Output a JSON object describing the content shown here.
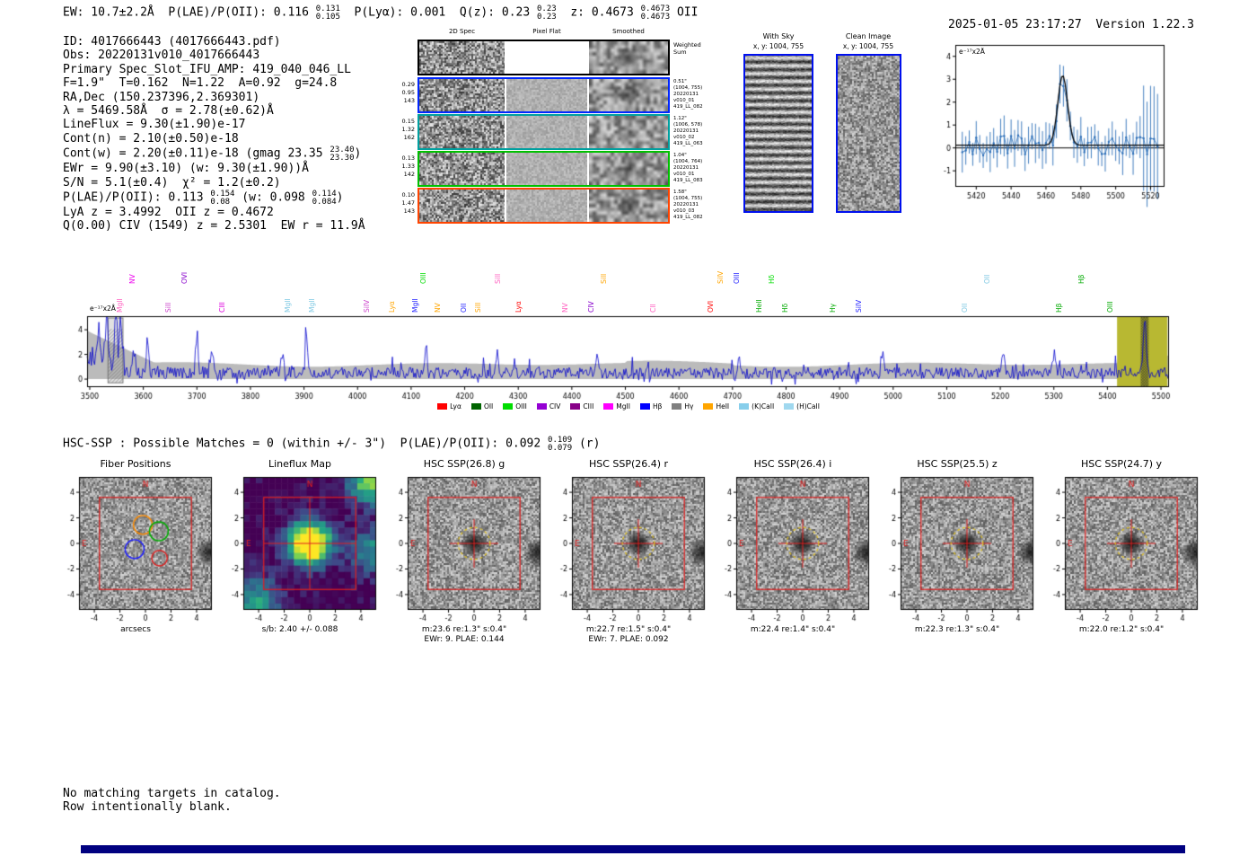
{
  "header": {
    "left_segments": [
      {
        "t": "EW: 10.7±2.2Å  P(LAE)/P(OII): 0.116 "
      },
      {
        "u": "0.131",
        "d": "0.105"
      },
      {
        "t": "  P(Lyα): 0.001  Q(z): 0.23 "
      },
      {
        "u": "0.23",
        "d": "0.23"
      },
      {
        "t": "  z: 0.4673 "
      },
      {
        "u": "0.4673",
        "d": "0.4673"
      },
      {
        "t": " OII"
      }
    ],
    "timestamp": "2025-01-05 23:17:27",
    "version": "Version 1.22.3"
  },
  "info_lines": [
    [
      {
        "t": "ID: 4017666443 (4017666443.pdf)"
      }
    ],
    [
      {
        "t": "Obs: 20220131v010_4017666443"
      }
    ],
    [
      {
        "t": "Primary Spec_Slot_IFU_AMP: 419_040_046_LL"
      }
    ],
    [
      {
        "t": "F=1.9\"  T=0.162  N=1.22  A=0.92  g=24.8"
      }
    ],
    [
      {
        "t": "RA,Dec (150.237396,2.369301)"
      }
    ],
    [
      {
        "t": "λ = 5469.58Å  σ = 2.78(±0.62)Å"
      }
    ],
    [
      {
        "t": "LineFlux = 9.30(±1.90)e-17"
      }
    ],
    [
      {
        "t": "Cont(n) = 2.10(±0.50)e-18"
      }
    ],
    [
      {
        "t": "Cont(w) = 2.20(±0.11)e-18 (gmag 23.35 "
      },
      {
        "u": "23.40",
        "d": "23.30"
      },
      {
        "t": ")"
      }
    ],
    [
      {
        "t": "EWr = 9.90(±3.10) (w: 9.30(±1.90))Å"
      }
    ],
    [
      {
        "t": "S/N = 5.1(±0.4)  χ² = 1.2(±0.2)"
      }
    ],
    [
      {
        "t": "P(LAE)/P(OII): 0.113 "
      },
      {
        "u": "0.154",
        "d": "0.08"
      },
      {
        "t": " (w: 0.098 "
      },
      {
        "u": "0.114",
        "d": "0.084"
      },
      {
        "t": ")"
      }
    ],
    [
      {
        "t": "LyA z = 3.4992  OII z = 0.4672"
      }
    ],
    [
      {
        "t": "Q(0.00) CIV (1549) z = 2.5301  EW r = 11.9Å"
      }
    ]
  ],
  "spec2d": {
    "col_headers": [
      "2D Spec",
      "Pixel Flat",
      "Smoothed"
    ],
    "weighted_sum_lines": [
      "Weighted",
      "Sum"
    ],
    "rows": [
      {
        "color": "#0026ff",
        "left": [
          "0.29",
          "0.95",
          "143"
        ],
        "right": [
          "0.51\"",
          "(1004, 755)",
          "20220131",
          "v010_01",
          "419_LL_082"
        ]
      },
      {
        "color": "#00a0a0",
        "left": [
          "0.15",
          "1.32",
          "162"
        ],
        "right": [
          "1.12\"",
          "(1006, 578)",
          "20220131",
          "v010_02",
          "419_LL_063"
        ]
      },
      {
        "color": "#00c000",
        "left": [
          "0.13",
          "1.33",
          "142"
        ],
        "right": [
          "1.04\"",
          "(1004, 764)",
          "20220131",
          "v010_01",
          "419_LL_083"
        ]
      },
      {
        "color": "#ff4400",
        "left": [
          "0.10",
          "1.47",
          "143"
        ],
        "right": [
          "1.58\"",
          "(1004, 755)",
          "20220131",
          "v010_03",
          "419_LL_082"
        ]
      }
    ]
  },
  "with_sky": {
    "title": "With Sky",
    "subtitle": "x, y: 1004, 755"
  },
  "clean_image": {
    "title": "Clean Image",
    "subtitle": "x, y: 1004, 755"
  },
  "chart_data": [
    {
      "type": "line",
      "name": "emission-line-fit-zoom",
      "ylabel": "e⁻¹⁷x2Å",
      "xlim": [
        5408,
        5528
      ],
      "ylim": [
        -1.7,
        4.5
      ],
      "xticks": [
        5420,
        5440,
        5460,
        5480,
        5500,
        5520
      ],
      "yticks": [
        -1,
        0,
        1,
        2,
        3,
        4
      ],
      "fit": {
        "center": 5469.58,
        "sigma": 2.78,
        "amplitude": 3.05,
        "baseline": 0.12
      },
      "noise_sigma": 0.45,
      "series": [
        {
          "name": "spectrum-data",
          "style": "errorbar",
          "color": "#2d6fb8"
        },
        {
          "name": "gaussian-fit",
          "style": "line",
          "color": "#000000"
        }
      ]
    },
    {
      "type": "line",
      "name": "full-spectrum",
      "ylabel": "e⁻¹⁷x2Å",
      "xlim": [
        3495,
        5515
      ],
      "ylim": [
        -0.65,
        5.1
      ],
      "xticks": [
        3500,
        3600,
        3700,
        3800,
        3900,
        4000,
        4100,
        4200,
        4300,
        4400,
        4500,
        4600,
        4700,
        4800,
        4900,
        5000,
        5100,
        5200,
        5300,
        5400,
        5500
      ],
      "yticks": [
        0,
        2,
        4
      ],
      "line_color": "#0000cc",
      "error_color": "#bbbbbb",
      "highlight_color": "#b8b832",
      "highlight_region": [
        5418,
        5512
      ],
      "hatch_region_left": [
        3534,
        3562
      ],
      "hatch_region_line": [
        5462,
        5477
      ],
      "emission_line": {
        "center": 5469.58,
        "sigma": 2.78,
        "amplitude": 4.55
      },
      "continuum_level": 0.5,
      "noise_sigma": 0.45
    }
  ],
  "emission_labels": [
    {
      "label": "MgII",
      "wl": 3548,
      "color": "#ff60c0",
      "tier": 0
    },
    {
      "label": "NV",
      "wl": 3572,
      "color": "#ee00ee",
      "tier": 1
    },
    {
      "label": "SiII",
      "wl": 3640,
      "color": "#cc44cc",
      "tier": 0
    },
    {
      "label": "OVI",
      "wl": 3670,
      "color": "#8800cc",
      "tier": 1
    },
    {
      "label": "CIII",
      "wl": 3739,
      "color": "#dd00dd",
      "tier": 0
    },
    {
      "label": "MgII",
      "wl": 3862,
      "color": "#7ec8e3",
      "tier": 0
    },
    {
      "label": "MgII",
      "wl": 3908,
      "color": "#7ec8e3",
      "tier": 0
    },
    {
      "label": "SiIV",
      "wl": 4010,
      "color": "#cc44cc",
      "tier": 0
    },
    {
      "label": "Lyα",
      "wl": 4056,
      "color": "#ffa500",
      "tier": 0
    },
    {
      "label": "MgII",
      "wl": 4100,
      "color": "#2222ff",
      "tier": 0
    },
    {
      "label": "OIII",
      "wl": 4116,
      "color": "#00dd00",
      "tier": 1
    },
    {
      "label": "NV",
      "wl": 4142,
      "color": "#ffa500",
      "tier": 0
    },
    {
      "label": "OII",
      "wl": 4190,
      "color": "#2222ff",
      "tier": 0
    },
    {
      "label": "SiII",
      "wl": 4218,
      "color": "#ffa500",
      "tier": 0
    },
    {
      "label": "SiII",
      "wl": 4254,
      "color": "#ff60c0",
      "tier": 1
    },
    {
      "label": "Lyα",
      "wl": 4293,
      "color": "#ff0000",
      "tier": 0
    },
    {
      "label": "NV",
      "wl": 4380,
      "color": "#ff60c0",
      "tier": 0
    },
    {
      "label": "CIV",
      "wl": 4428,
      "color": "#8800cc",
      "tier": 0
    },
    {
      "label": "SiII",
      "wl": 4452,
      "color": "#ffa500",
      "tier": 1
    },
    {
      "label": "CII",
      "wl": 4544,
      "color": "#ff60c0",
      "tier": 0
    },
    {
      "label": "OVI",
      "wl": 4652,
      "color": "#ff0000",
      "tier": 0
    },
    {
      "label": "SiIV",
      "wl": 4670,
      "color": "#ffa500",
      "tier": 1
    },
    {
      "label": "OIII",
      "wl": 4700,
      "color": "#2222ff",
      "tier": 1
    },
    {
      "label": "HeII",
      "wl": 4742,
      "color": "#00aa00",
      "tier": 0
    },
    {
      "label": "Hδ",
      "wl": 4766,
      "color": "#00dd00",
      "tier": 1
    },
    {
      "label": "Hδ",
      "wl": 4790,
      "color": "#00aa00",
      "tier": 0
    },
    {
      "label": "Hγ",
      "wl": 4880,
      "color": "#00aa00",
      "tier": 0
    },
    {
      "label": "SiIV",
      "wl": 4928,
      "color": "#2222ff",
      "tier": 0
    },
    {
      "label": "OII",
      "wl": 5126,
      "color": "#7ec8e3",
      "tier": 0
    },
    {
      "label": "OII",
      "wl": 5168,
      "color": "#7ec8e3",
      "tier": 1
    },
    {
      "label": "Hβ",
      "wl": 5302,
      "color": "#00aa00",
      "tier": 0
    },
    {
      "label": "Hβ",
      "wl": 5344,
      "color": "#00aa00",
      "tier": 1
    },
    {
      "label": "OIII",
      "wl": 5398,
      "color": "#00aa00",
      "tier": 0
    }
  ],
  "legend": [
    {
      "label": "Lyα",
      "color": "#ff0000"
    },
    {
      "label": "OII",
      "color": "#006400"
    },
    {
      "label": "OIII",
      "color": "#00dd00"
    },
    {
      "label": "CIV",
      "color": "#9400d3"
    },
    {
      "label": "CIII",
      "color": "#880088"
    },
    {
      "label": "MgII",
      "color": "#ff00ff"
    },
    {
      "label": "Hβ",
      "color": "#0000ff"
    },
    {
      "label": "Hγ",
      "color": "#808080"
    },
    {
      "label": "HeII",
      "color": "#ffa500"
    },
    {
      "label": "(K)CaII",
      "color": "#87ceeb"
    },
    {
      "label": "(H)CaII",
      "color": "#a0d8ef"
    }
  ],
  "hsc_line_segments": [
    {
      "t": "HSC-SSP : Possible Matches = 0 (within +/- 3\")  P(LAE)/P(OII): 0.092 "
    },
    {
      "u": "0.109",
      "d": "0.079"
    },
    {
      "t": " (r)"
    }
  ],
  "panel_axis": {
    "ticks": [
      -4,
      -2,
      0,
      2,
      4
    ],
    "north": "N",
    "east": "E"
  },
  "panels": [
    {
      "title": "Fiber Positions",
      "type": "fiber",
      "caption1": "arcsecs",
      "caption2": ""
    },
    {
      "title": "Lineflux Map",
      "type": "lineflux",
      "caption1": "s/b: 2.40 +/- 0.088",
      "caption2": ""
    },
    {
      "title": "HSC SSP(26.8) g",
      "type": "cutout",
      "caption1": "m:23.6 re:1.3\" s:0.4\"",
      "caption2": "EWr: 9. PLAE: 0.144"
    },
    {
      "title": "HSC SSP(26.4) r",
      "type": "cutout",
      "caption1": "m:22.7 re:1.5\" s:0.4\"",
      "caption2": "EWr: 7. PLAE: 0.092"
    },
    {
      "title": "HSC SSP(26.4) i",
      "type": "cutout",
      "caption1": "m:22.4 re:1.4\" s:0.4\"",
      "caption2": ""
    },
    {
      "title": "HSC SSP(25.5) z",
      "type": "cutout",
      "caption1": "m:22.3 re:1.3\" s:0.4\"",
      "caption2": ""
    },
    {
      "title": "HSC SSP(24.7) y",
      "type": "cutout",
      "caption1": "m:22.0 re:1.2\" s:0.4\"",
      "caption2": ""
    }
  ],
  "footer_lines": [
    "No matching targets in catalog.",
    "Row intentionally blank."
  ],
  "bottom_bar_color": "#000080"
}
